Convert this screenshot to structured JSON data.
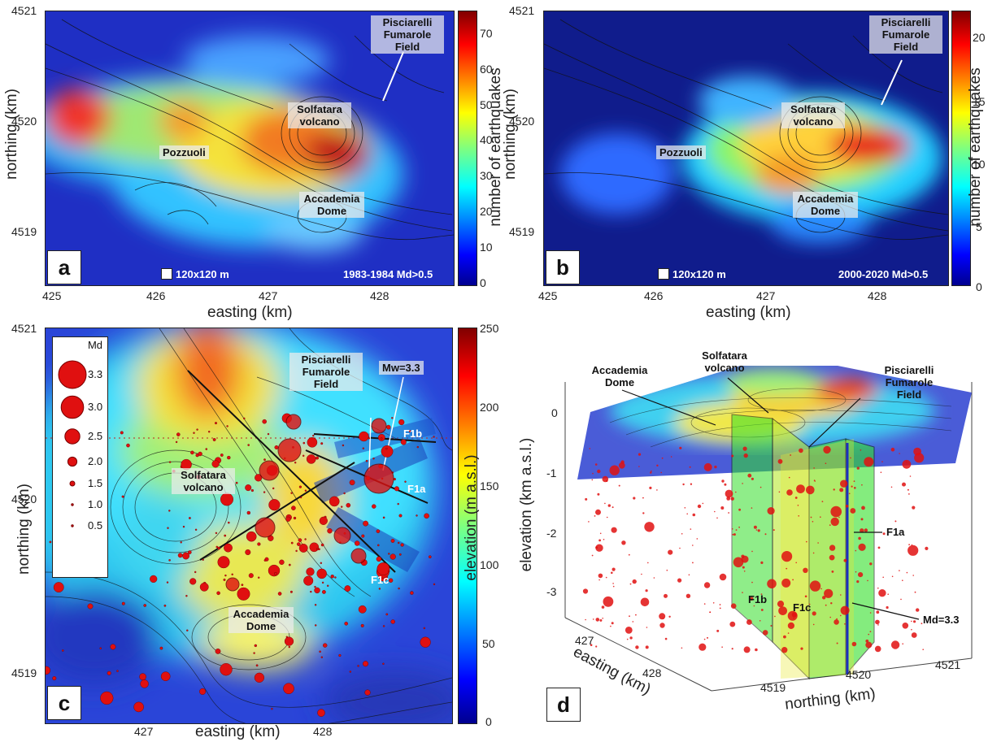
{
  "panels": {
    "a": {
      "letter": "a",
      "labels": {
        "pisciarelli": "Pisciarelli Fumarole Field",
        "solfatara": "Solfatara volcano",
        "pozzuoli": "Pozzuoli",
        "accademia": "Accademia Dome"
      },
      "cell_note": "120x120 m",
      "period_note": "1983-1984 Md>0.5",
      "xticks": [
        "425",
        "426",
        "427",
        "428"
      ],
      "yticks": [
        "4521",
        "4520",
        "4519"
      ],
      "xlabel": "easting (km)",
      "ylabel": "northing (km)",
      "colorbar": {
        "label": "number of earthquakes",
        "ticks": [
          "70",
          "60",
          "50",
          "40",
          "30",
          "20",
          "10",
          "0"
        ],
        "range": [
          0,
          77
        ]
      }
    },
    "b": {
      "letter": "b",
      "labels": {
        "pisciarelli": "Pisciarelli Fumarole Field",
        "solfatara": "Solfatara volcano",
        "pozzuoli": "Pozzuoli",
        "accademia": "Accademia Dome"
      },
      "cell_note": "120x120 m",
      "period_note": "2000-2020 Md>0.5",
      "xticks": [
        "425",
        "426",
        "427",
        "428"
      ],
      "yticks": [
        "4521",
        "4520",
        "4519"
      ],
      "xlabel": "easting (km)",
      "ylabel": "northing (km)",
      "colorbar": {
        "label": "number of earthquakes",
        "ticks": [
          "20",
          "15",
          "10",
          "5",
          "0"
        ],
        "range": [
          0,
          22
        ]
      }
    },
    "c": {
      "letter": "c",
      "labels": {
        "pisciarelli": "Pisciarelli Fumarole Field",
        "solfatara": "Solfatara volcano",
        "accademia": "Accademia Dome",
        "mw": "Mw=3.3",
        "f1a": "F1a",
        "f1b": "F1b",
        "f1c": "F1c"
      },
      "legend": {
        "title": "Md",
        "entries": [
          "3.3",
          "3.0",
          "2.5",
          "2.0",
          "1.5",
          "1.0",
          "0.5"
        ]
      },
      "xticks": [
        "427",
        "428"
      ],
      "yticks": [
        "4521",
        "4520",
        "4519"
      ],
      "xlabel": "easting (km)",
      "ylabel": "northing (km)",
      "colorbar": {
        "label": "elevation (m a.s.l.)",
        "ticks": [
          "250",
          "200",
          "150",
          "100",
          "50",
          "0"
        ],
        "range": [
          0,
          250
        ]
      }
    },
    "d": {
      "letter": "d",
      "labels": {
        "accademia": "Accademia Dome",
        "solfatara": "Solfatara volcano",
        "pisciarelli": "Pisciarelli Fumarole Field",
        "f1a": "F1a",
        "f1b": "F1b",
        "f1c": "F1c",
        "md": "Md=3.3"
      },
      "zticks": [
        "0",
        "-1",
        "-2",
        "-3"
      ],
      "zlabel": "elevation (km a.s.l.)",
      "easting_ticks": [
        "427",
        "428"
      ],
      "easting_label": "easting (km)",
      "northing_ticks": [
        "4519",
        "4520",
        "4521"
      ],
      "northing_label": "northing (km)"
    }
  },
  "colors": {
    "jet_low": "#00008f",
    "jet_mid": "#7fff7f",
    "jet_high": "#800000",
    "quake": "#e01010"
  }
}
